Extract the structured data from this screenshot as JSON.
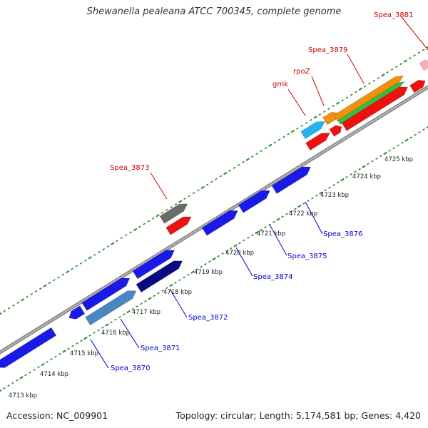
{
  "title": "Shewanella pealeana ATCC 700345, complete genome",
  "footer": {
    "accession": "Accession: NC_009901",
    "stats": "Topology: circular; Length: 5,174,581 bp; Genes: 4,420"
  },
  "colors": {
    "backbone": "#8a8a8a",
    "tick": "#2e8b2e",
    "label_top": "#cc0000",
    "label_bottom": "#0000cc",
    "line_top": "#cc0000",
    "line_bottom": "#0000cc"
  },
  "kbp_ticks": [
    "4713 kbp",
    "4714 kbp",
    "4715 kbp",
    "4716 kbp",
    "4717 kbp",
    "4718 kbp",
    "4719 kbp",
    "4720 kbp",
    "4721 kbp",
    "4722 kbp",
    "4723 kbp",
    "4724 kbp",
    "4725 kbp"
  ],
  "top_labels": [
    "Spea_3881",
    "Spea_3879",
    "rpoZ",
    "gmk",
    "Spea_3873"
  ],
  "bottom_labels": [
    "Spea_3876",
    "Spea_3875",
    "Spea_3874",
    "Spea_3872",
    "Spea_3871",
    "Spea_3870"
  ],
  "gene_colors": {
    "blue": "#1a1ae6",
    "navy": "#0a0a80",
    "steel": "#4a86c0",
    "red": "#ee1111",
    "gray": "#6b6b6b",
    "cyan": "#22b4ee",
    "orange": "#f29010",
    "green": "#3cbc3c",
    "pink": "#f7b0b0"
  }
}
